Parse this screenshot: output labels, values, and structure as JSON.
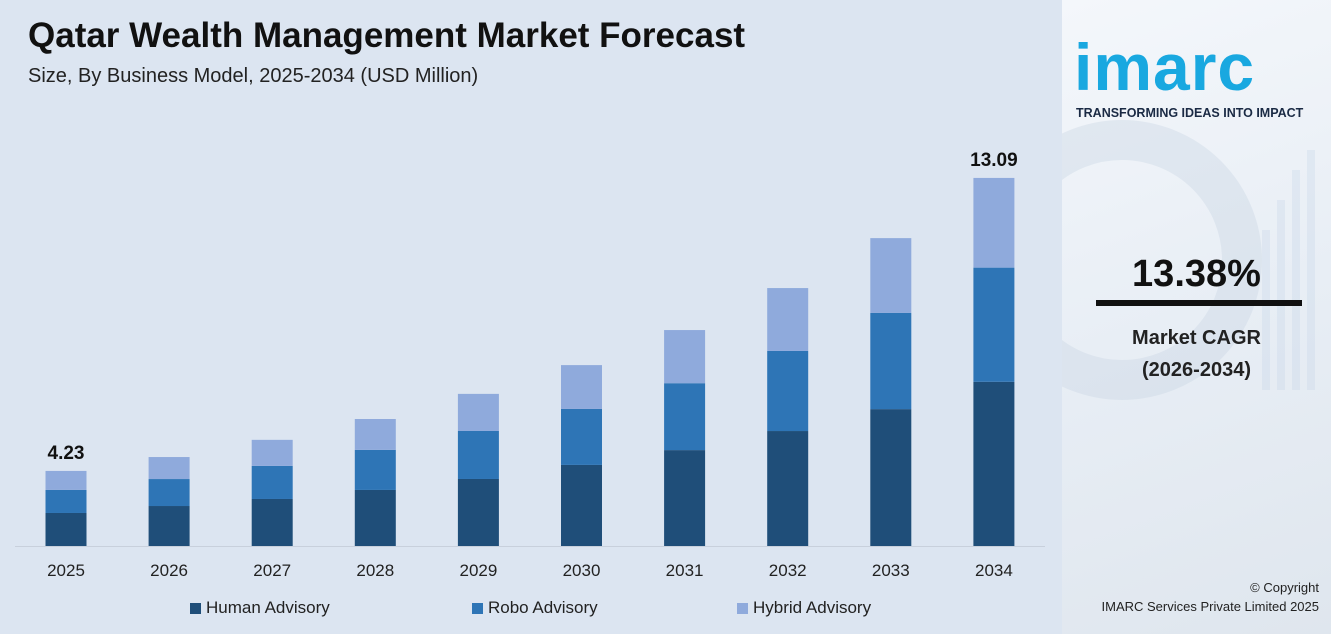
{
  "title": "Qatar Wealth Management Market Forecast",
  "subtitle": "Size, By Business Model, 2025-2034 (USD Million)",
  "brand": {
    "logo": "imarc",
    "tagline": "TRANSFORMING IDEAS INTO IMPACT",
    "color": "#19a8e0"
  },
  "cagr": {
    "value": "13.38%",
    "label": "Market CAGR",
    "period": "(2026-2034)"
  },
  "copyright": {
    "line1": "© Copyright",
    "line2": "IMARC Services Private Limited 2025"
  },
  "chart_data": {
    "type": "bar",
    "stacked": true,
    "categories": [
      "2025",
      "2026",
      "2027",
      "2028",
      "2029",
      "2030",
      "2031",
      "2032",
      "2033",
      "2034"
    ],
    "series": [
      {
        "name": "Human Advisory",
        "color": "#1f4e79",
        "values": [
          1.86,
          2.09,
          2.29,
          2.56,
          2.89,
          3.33,
          3.77,
          4.35,
          5.01,
          5.84
        ]
      },
      {
        "name": "Robo Advisory",
        "color": "#2e75b6",
        "values": [
          1.3,
          1.41,
          1.61,
          1.83,
          2.07,
          2.3,
          2.63,
          3.03,
          3.52,
          4.06
        ]
      },
      {
        "name": "Hybrid Advisory",
        "color": "#8faadc",
        "values": [
          1.07,
          1.15,
          1.27,
          1.41,
          1.6,
          1.8,
          2.09,
          2.38,
          2.74,
          3.19
        ]
      }
    ],
    "totals": [
      4.23,
      4.65,
      5.17,
      5.8,
      6.56,
      7.43,
      8.49,
      9.76,
      11.27,
      13.09
    ],
    "data_labels": {
      "0": "4.23",
      "9": "13.09"
    },
    "grid": false,
    "legend": "bottom"
  }
}
